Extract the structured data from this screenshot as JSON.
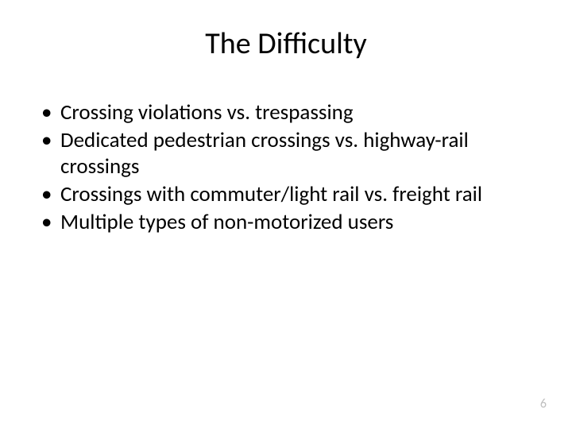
{
  "slide": {
    "title": "The Difficulty",
    "title_fontsize": 38,
    "bullets": [
      "Crossing violations vs. trespassing",
      "Dedicated pedestrian crossings vs. highway-rail crossings",
      "Crossings with commuter/light rail vs. freight rail",
      "Multiple types of non-motorized users"
    ],
    "bullet_fontsize": 27,
    "page_number": "6",
    "colors": {
      "background": "#ffffff",
      "text": "#000000",
      "pagenum": "#c0c0c0"
    }
  }
}
